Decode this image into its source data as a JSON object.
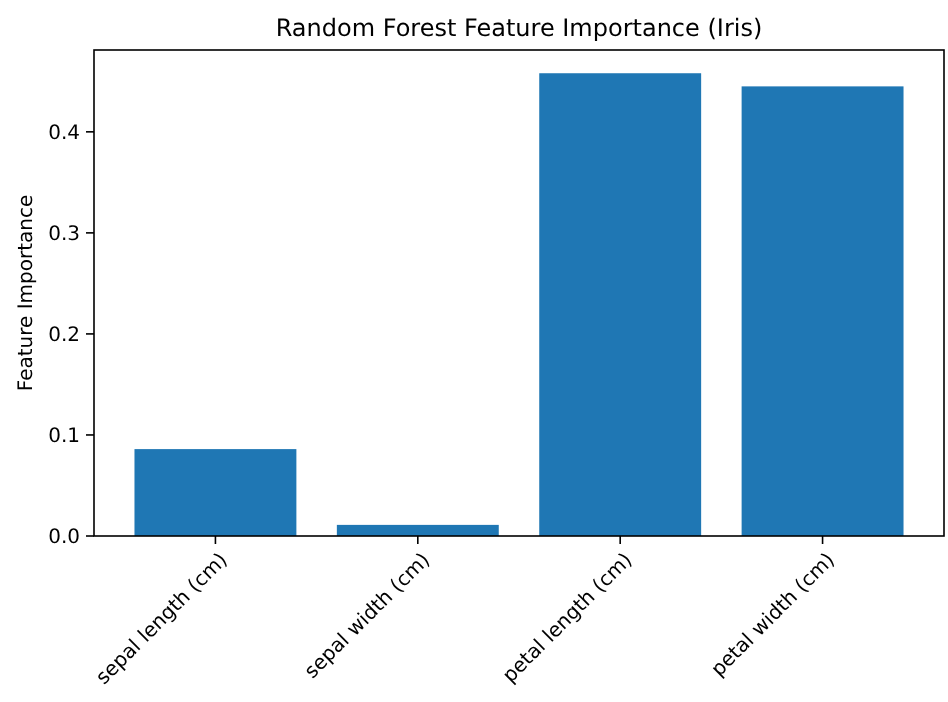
{
  "chart_data": {
    "type": "bar",
    "title": "Random Forest Feature Importance (Iris)",
    "ylabel": "Feature Importance",
    "categories": [
      "sepal length (cm)",
      "sepal width (cm)",
      "petal length (cm)",
      "petal width (cm)"
    ],
    "values": [
      0.086,
      0.011,
      0.458,
      0.445
    ],
    "color": "#1f77b4",
    "ylim": [
      0,
      0.481
    ],
    "yticks": [
      {
        "value": 0,
        "label": "0.0"
      },
      {
        "value": 0.1,
        "label": "0.1"
      },
      {
        "value": 0.2,
        "label": "0.2"
      },
      {
        "value": 0.3,
        "label": "0.3"
      },
      {
        "value": 0.4,
        "label": "0.4"
      }
    ],
    "grid": false
  }
}
